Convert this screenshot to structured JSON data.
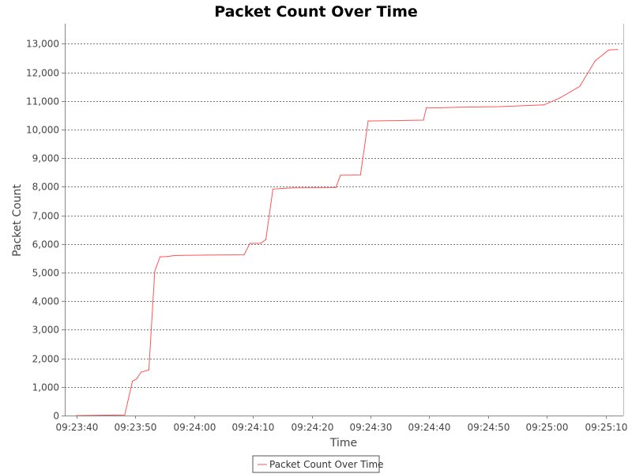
{
  "chart_data": {
    "type": "line",
    "title": "Packet Count Over Time",
    "xlabel": "Time",
    "ylabel": "Packet Count",
    "xlim": [
      -2,
      93
    ],
    "ylim": [
      0,
      13700
    ],
    "x_ticks": [
      {
        "value": 0,
        "label": "09:23:40"
      },
      {
        "value": 10,
        "label": "09:23:50"
      },
      {
        "value": 20,
        "label": "09:24:00"
      },
      {
        "value": 30,
        "label": "09:24:10"
      },
      {
        "value": 40,
        "label": "09:24:20"
      },
      {
        "value": 50,
        "label": "09:24:30"
      },
      {
        "value": 60,
        "label": "09:24:40"
      },
      {
        "value": 70,
        "label": "09:24:50"
      },
      {
        "value": 80,
        "label": "09:25:00"
      },
      {
        "value": 90,
        "label": "09:25:10"
      }
    ],
    "y_ticks": [
      {
        "value": 0,
        "label": "0"
      },
      {
        "value": 1000,
        "label": "1,000"
      },
      {
        "value": 2000,
        "label": "2,000"
      },
      {
        "value": 3000,
        "label": "3,000"
      },
      {
        "value": 4000,
        "label": "4,000"
      },
      {
        "value": 5000,
        "label": "5,000"
      },
      {
        "value": 6000,
        "label": "6,000"
      },
      {
        "value": 7000,
        "label": "7,000"
      },
      {
        "value": 8000,
        "label": "8,000"
      },
      {
        "value": 9000,
        "label": "9,000"
      },
      {
        "value": 10000,
        "label": "10,000"
      },
      {
        "value": 11000,
        "label": "11,000"
      },
      {
        "value": 12000,
        "label": "12,000"
      },
      {
        "value": 13000,
        "label": "13,000"
      }
    ],
    "grid": true,
    "legend_position": "bottom-center",
    "series": [
      {
        "name": "Packet Count Over Time",
        "color": "#ff5555",
        "x": [
          0,
          8.2,
          9.5,
          10.2,
          11,
          12.3,
          13.3,
          14.2,
          15.4,
          16.5,
          18,
          22,
          28.5,
          29.5,
          31.3,
          32.2,
          33.4,
          35.5,
          37,
          44.1,
          44.9,
          48.3,
          49.6,
          56,
          59,
          59.5,
          62,
          65,
          72,
          79.5,
          82.2,
          85.6,
          88.2,
          90.5,
          92
        ],
        "y": [
          0,
          20,
          1200,
          1280,
          1520,
          1590,
          5050,
          5550,
          5560,
          5590,
          5600,
          5610,
          5620,
          6020,
          6020,
          6150,
          7920,
          7950,
          7960,
          7970,
          8400,
          8410,
          10300,
          10320,
          10330,
          10760,
          10760,
          10780,
          10800,
          10860,
          11100,
          11510,
          12400,
          12780,
          12800
        ]
      }
    ]
  }
}
